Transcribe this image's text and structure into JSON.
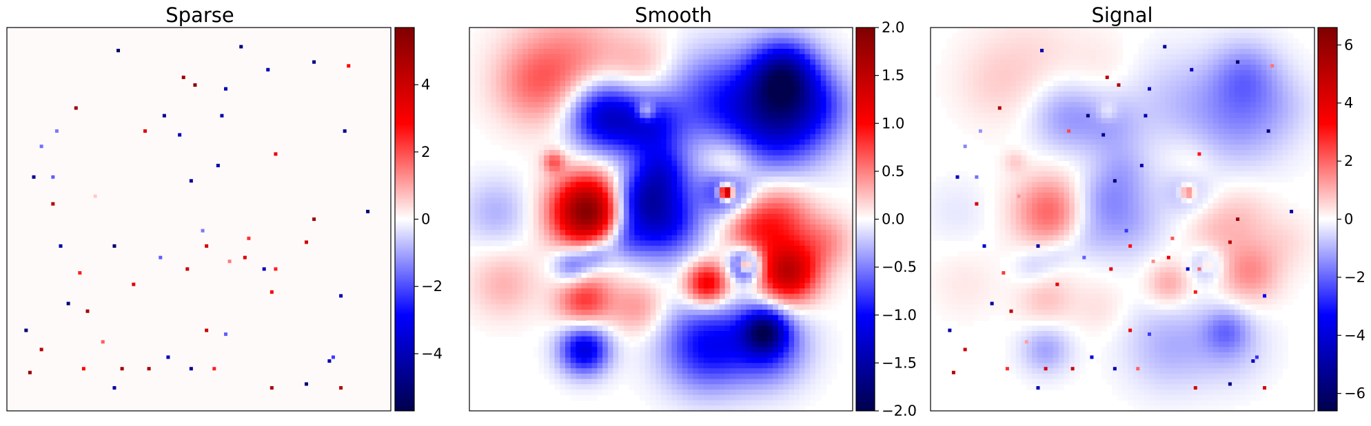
{
  "chart_data": [
    {
      "type": "heatmap",
      "title": "Sparse",
      "colormap": "seismic",
      "clim": [
        -5.7,
        5.7
      ],
      "colorbar_ticks": [
        4,
        2,
        0,
        -2,
        -4
      ],
      "colorbar_tick_labels": [
        "4",
        "2",
        "0",
        "−2",
        "−4"
      ],
      "grid": false,
      "points_xy_value": [
        [
          0.29,
          0.06,
          -5.2
        ],
        [
          0.61,
          0.05,
          -5.0
        ],
        [
          0.68,
          0.11,
          -4.0
        ],
        [
          0.8,
          0.09,
          -4.8
        ],
        [
          0.89,
          0.1,
          2.8
        ],
        [
          0.46,
          0.13,
          5.0
        ],
        [
          0.49,
          0.15,
          5.5
        ],
        [
          0.57,
          0.16,
          -4.0
        ],
        [
          0.18,
          0.21,
          5.0
        ],
        [
          0.41,
          0.23,
          -4.6
        ],
        [
          0.56,
          0.23,
          -4.2
        ],
        [
          0.36,
          0.27,
          3.5
        ],
        [
          0.45,
          0.28,
          -4.0
        ],
        [
          0.13,
          0.27,
          -1.5
        ],
        [
          0.88,
          0.27,
          -4.5
        ],
        [
          0.09,
          0.31,
          -1.6
        ],
        [
          0.7,
          0.33,
          3.3
        ],
        [
          0.55,
          0.36,
          -4.0
        ],
        [
          0.07,
          0.39,
          -4.5
        ],
        [
          0.12,
          0.39,
          -1.8
        ],
        [
          0.48,
          0.4,
          -4.5
        ],
        [
          0.23,
          0.44,
          0.6
        ],
        [
          0.12,
          0.46,
          4.5
        ],
        [
          0.8,
          0.5,
          5.0
        ],
        [
          0.94,
          0.48,
          -5.0
        ],
        [
          0.51,
          0.53,
          -1.5
        ],
        [
          0.63,
          0.55,
          2.3
        ],
        [
          0.78,
          0.56,
          4.0
        ],
        [
          0.14,
          0.57,
          -4.2
        ],
        [
          0.28,
          0.57,
          -5.2
        ],
        [
          0.52,
          0.57,
          3.8
        ],
        [
          0.62,
          0.6,
          3.5
        ],
        [
          0.4,
          0.6,
          -1.8
        ],
        [
          0.58,
          0.61,
          1.5
        ],
        [
          0.47,
          0.63,
          4.0
        ],
        [
          0.19,
          0.64,
          2.5
        ],
        [
          0.67,
          0.63,
          -4.0
        ],
        [
          0.7,
          0.63,
          2.5
        ],
        [
          0.33,
          0.67,
          3.5
        ],
        [
          0.69,
          0.69,
          3.0
        ],
        [
          0.87,
          0.7,
          -4.0
        ],
        [
          0.16,
          0.72,
          -5.0
        ],
        [
          0.21,
          0.74,
          4.8
        ],
        [
          0.05,
          0.79,
          -5.0
        ],
        [
          0.57,
          0.8,
          -1.8
        ],
        [
          0.52,
          0.79,
          4.0
        ],
        [
          0.25,
          0.82,
          1.8
        ],
        [
          0.09,
          0.84,
          4.5
        ],
        [
          0.42,
          0.86,
          -4.0
        ],
        [
          0.85,
          0.86,
          -2.2
        ],
        [
          0.84,
          0.87,
          -4.2
        ],
        [
          0.2,
          0.89,
          2.8
        ],
        [
          0.3,
          0.89,
          5.0
        ],
        [
          0.37,
          0.89,
          4.8
        ],
        [
          0.48,
          0.89,
          -4.5
        ],
        [
          0.54,
          0.89,
          2.5
        ],
        [
          0.06,
          0.9,
          5.0
        ],
        [
          0.78,
          0.93,
          -5.0
        ],
        [
          0.28,
          0.94,
          -4.5
        ],
        [
          0.69,
          0.94,
          4.8
        ],
        [
          0.87,
          0.94,
          4.5
        ]
      ]
    },
    {
      "type": "heatmap",
      "title": "Smooth",
      "colormap": "seismic",
      "clim": [
        -2.0,
        2.0
      ],
      "colorbar_ticks": [
        2.0,
        1.5,
        1.0,
        0.5,
        0.0,
        -0.5,
        -1.0,
        -1.5,
        -2.0
      ],
      "colorbar_tick_labels": [
        "2.0",
        "1.5",
        "1.0",
        "0.5",
        "0.0",
        "−0.5",
        "−1.0",
        "−1.5",
        "−2.0"
      ],
      "grid": false,
      "gaussian_blobs_xy_amplitude_sigma": [
        [
          0.26,
          0.1,
          0.5,
          0.1
        ],
        [
          0.16,
          0.15,
          0.35,
          0.07
        ],
        [
          0.45,
          0.1,
          0.25,
          0.06
        ],
        [
          0.35,
          0.23,
          -1.3,
          0.065
        ],
        [
          0.47,
          0.26,
          -0.9,
          0.06
        ],
        [
          0.64,
          0.19,
          -0.7,
          0.09
        ],
        [
          0.81,
          0.23,
          -1.4,
          0.09
        ],
        [
          0.82,
          0.12,
          -1.2,
          0.06
        ],
        [
          0.46,
          0.22,
          0.7,
          0.018
        ],
        [
          0.22,
          0.35,
          0.6,
          0.02
        ],
        [
          0.07,
          0.48,
          -0.3,
          0.06
        ],
        [
          0.31,
          0.48,
          2.0,
          0.065
        ],
        [
          0.5,
          0.5,
          -1.2,
          0.07
        ],
        [
          0.5,
          0.38,
          -0.8,
          0.05
        ],
        [
          0.43,
          0.45,
          -0.7,
          0.05
        ],
        [
          0.27,
          0.62,
          -0.7,
          0.035
        ],
        [
          0.33,
          0.59,
          -0.6,
          0.03
        ],
        [
          0.4,
          0.55,
          -0.5,
          0.04
        ],
        [
          0.3,
          0.71,
          0.8,
          0.05
        ],
        [
          0.44,
          0.73,
          0.4,
          0.05
        ],
        [
          0.62,
          0.67,
          1.2,
          0.04
        ],
        [
          0.83,
          0.64,
          1.5,
          0.055
        ],
        [
          0.81,
          0.5,
          0.7,
          0.06
        ],
        [
          0.73,
          0.53,
          0.5,
          0.05
        ],
        [
          0.68,
          0.38,
          0.5,
          0.04
        ],
        [
          0.67,
          0.42,
          -1.0,
          0.045
        ],
        [
          0.67,
          0.43,
          2.4,
          0.013
        ],
        [
          0.72,
          0.62,
          -1.2,
          0.03
        ],
        [
          0.72,
          0.62,
          1.2,
          0.012
        ],
        [
          0.62,
          0.83,
          -1.0,
          0.08
        ],
        [
          0.78,
          0.83,
          -0.8,
          0.07
        ],
        [
          0.77,
          0.79,
          -1.2,
          0.04
        ],
        [
          0.3,
          0.84,
          -1.2,
          0.045
        ],
        [
          0.93,
          0.56,
          0.4,
          0.05
        ],
        [
          0.09,
          0.67,
          0.3,
          0.06
        ],
        [
          0.93,
          0.2,
          -0.3,
          0.06
        ],
        [
          0.67,
          0.33,
          0.2,
          0.05
        ]
      ]
    },
    {
      "type": "heatmap",
      "title": "Signal",
      "colormap": "seismic",
      "clim": [
        -6.6,
        6.6
      ],
      "colorbar_ticks": [
        6,
        4,
        2,
        0,
        -2,
        -4,
        -6
      ],
      "colorbar_tick_labels": [
        "6",
        "4",
        "2",
        "0",
        "−2",
        "−4",
        "−6"
      ],
      "grid": false,
      "composition": "Sparse + Smooth"
    }
  ]
}
